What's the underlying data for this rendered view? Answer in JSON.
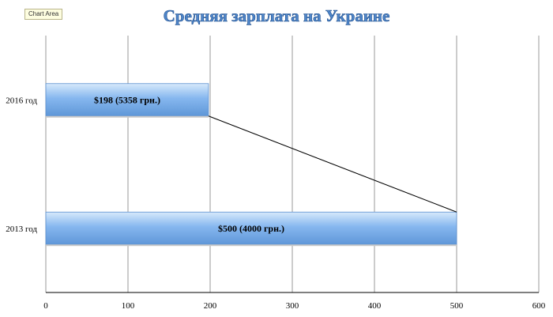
{
  "chart_data": {
    "type": "bar",
    "orientation": "horizontal",
    "title": "Средняя зарплата на Украине",
    "categories": [
      "2016 год",
      "2013 год"
    ],
    "values": [
      198,
      500
    ],
    "data_labels": [
      "$198 (5358 грн.)",
      "$500 (4000 грн.)"
    ],
    "x_ticks": [
      "0",
      "100",
      "200",
      "300",
      "400",
      "500",
      "600"
    ],
    "xlim": [
      0,
      600
    ],
    "grid": true,
    "legend": "none",
    "series_lines": true,
    "colors": {
      "bar_top": "#d7e9fb",
      "bar_mid": "#86b7ef",
      "bar_bottom": "#5f97d8",
      "title": "#4f86c9"
    }
  },
  "chart_area_tag": "Chart Area"
}
